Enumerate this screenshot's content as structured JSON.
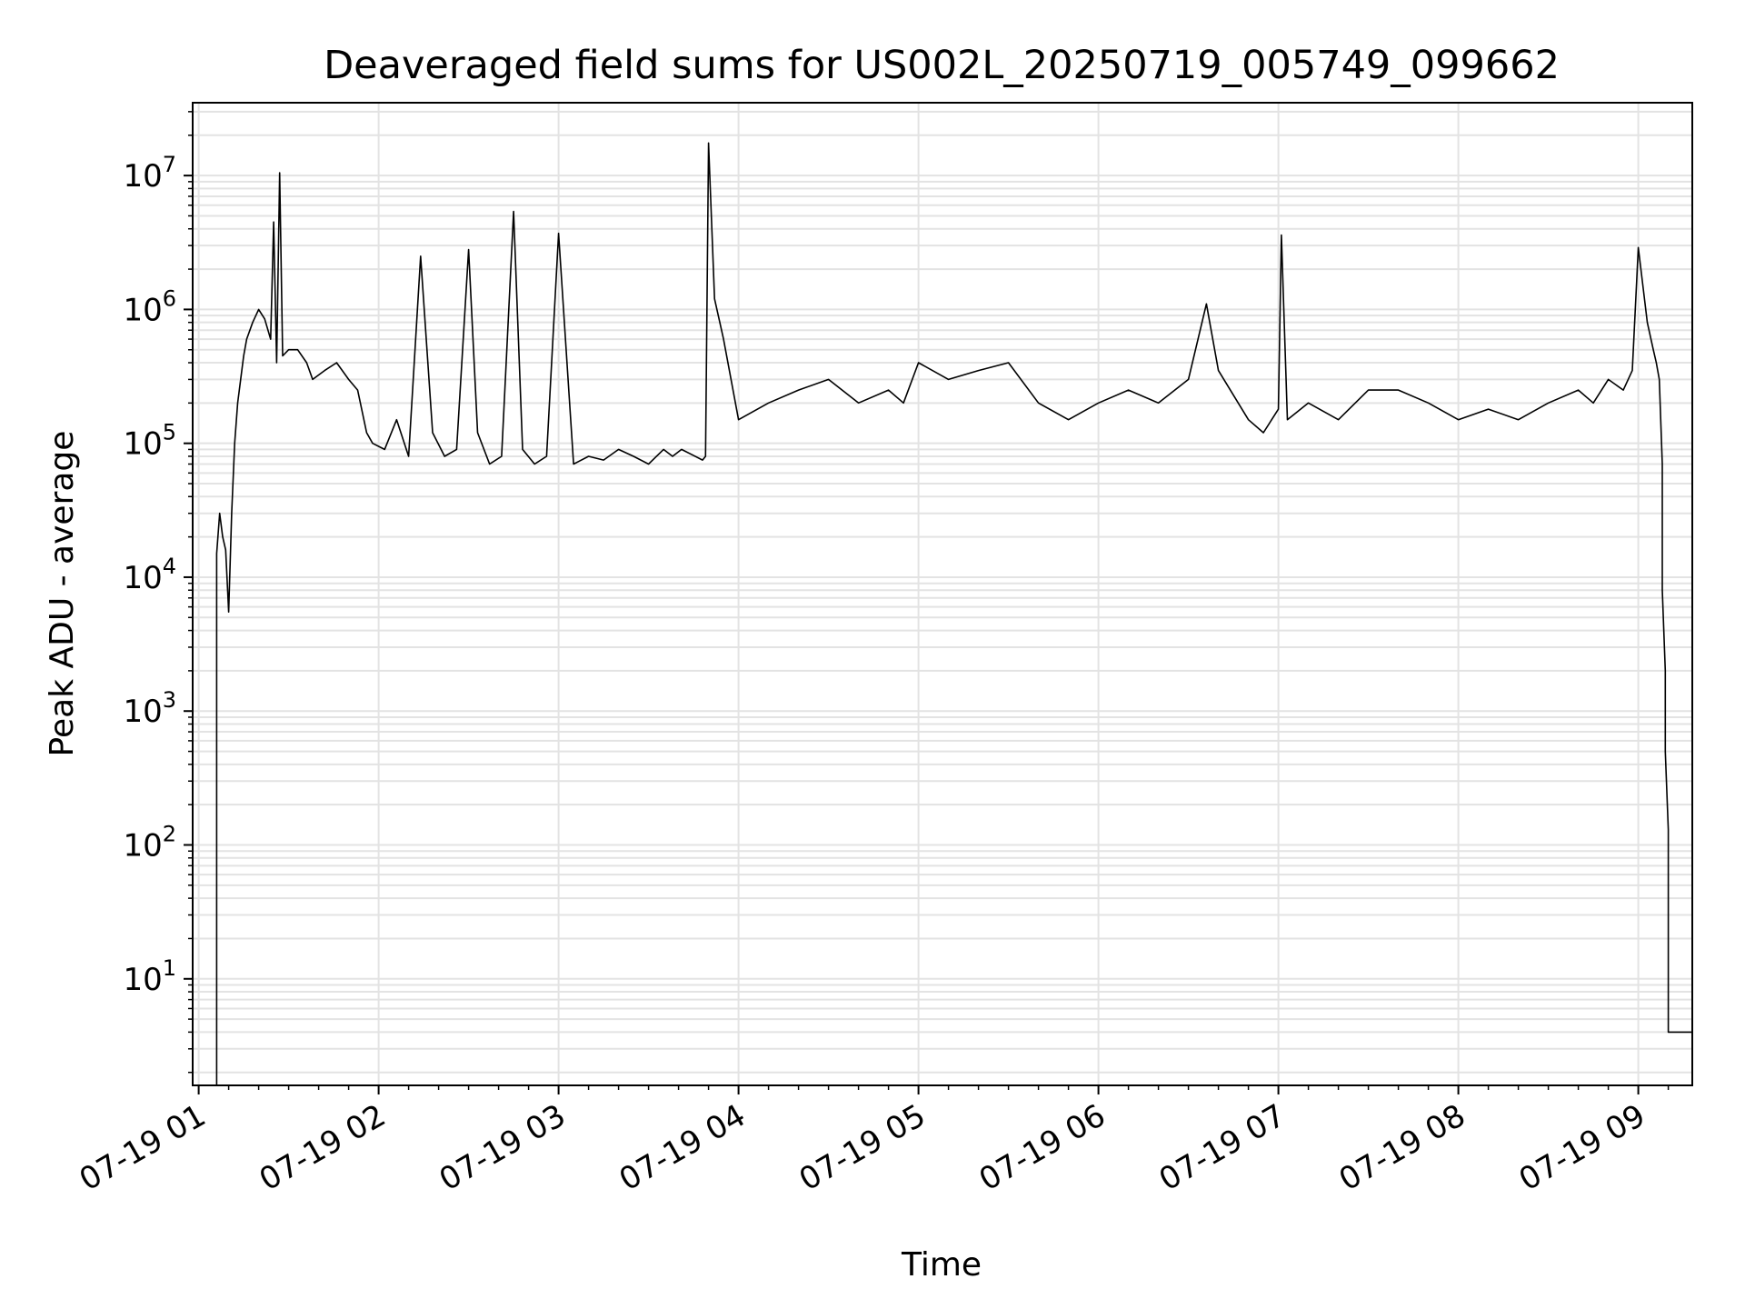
{
  "chart_data": {
    "type": "line",
    "title": "Deaveraged field sums for US002L_20250719_005749_099662",
    "xlabel": "Time",
    "ylabel": "Peak ADU - average",
    "yscale": "log",
    "ylim": [
      1.6,
      35000000
    ],
    "xlim": [
      "07-19 00:58",
      "07-19 09:18"
    ],
    "grid": true,
    "line_color": "#000000",
    "x_tick_labels": [
      "07-19 01",
      "07-19 02",
      "07-19 03",
      "07-19 04",
      "07-19 05",
      "07-19 06",
      "07-19 07",
      "07-19 08",
      "07-19 09"
    ],
    "y_tick_labels": [
      {
        "base": "10",
        "exp": "1"
      },
      {
        "base": "10",
        "exp": "2"
      },
      {
        "base": "10",
        "exp": "3"
      },
      {
        "base": "10",
        "exp": "4"
      },
      {
        "base": "10",
        "exp": "5"
      },
      {
        "base": "10",
        "exp": "6"
      },
      {
        "base": "10",
        "exp": "7"
      }
    ],
    "series": [
      {
        "x": [
          "07-19 01:06",
          "07-19 01:06",
          "07-19 01:07",
          "07-19 01:08",
          "07-19 01:09",
          "07-19 01:10",
          "07-19 01:11",
          "07-19 01:12",
          "07-19 01:13",
          "07-19 01:14",
          "07-19 01:15",
          "07-19 01:16",
          "07-19 01:18",
          "07-19 01:20",
          "07-19 01:22",
          "07-19 01:24",
          "07-19 01:25",
          "07-19 01:26",
          "07-19 01:27",
          "07-19 01:28",
          "07-19 01:30",
          "07-19 01:33",
          "07-19 01:36",
          "07-19 01:38",
          "07-19 01:42",
          "07-19 01:46",
          "07-19 01:50",
          "07-19 01:53",
          "07-19 01:56",
          "07-19 01:58",
          "07-19 02:02",
          "07-19 02:06",
          "07-19 02:10",
          "07-19 02:14",
          "07-19 02:18",
          "07-19 02:22",
          "07-19 02:26",
          "07-19 02:30",
          "07-19 02:33",
          "07-19 02:37",
          "07-19 02:41",
          "07-19 02:45",
          "07-19 02:48",
          "07-19 02:52",
          "07-19 02:56",
          "07-19 03:00",
          "07-19 03:05",
          "07-19 03:10",
          "07-19 03:15",
          "07-19 03:20",
          "07-19 03:25",
          "07-19 03:30",
          "07-19 03:35",
          "07-19 03:38",
          "07-19 03:41",
          "07-19 03:48",
          "07-19 03:49",
          "07-19 03:50",
          "07-19 03:52",
          "07-19 03:55",
          "07-19 04:00",
          "07-19 04:10",
          "07-19 04:20",
          "07-19 04:30",
          "07-19 04:40",
          "07-19 04:50",
          "07-19 04:55",
          "07-19 05:00",
          "07-19 05:10",
          "07-19 05:20",
          "07-19 05:30",
          "07-19 05:40",
          "07-19 05:50",
          "07-19 06:00",
          "07-19 06:10",
          "07-19 06:20",
          "07-19 06:30",
          "07-19 06:36",
          "07-19 06:40",
          "07-19 06:50",
          "07-19 06:55",
          "07-19 07:00",
          "07-19 07:01",
          "07-19 07:03",
          "07-19 07:10",
          "07-19 07:20",
          "07-19 07:30",
          "07-19 07:40",
          "07-19 07:50",
          "07-19 08:00",
          "07-19 08:10",
          "07-19 08:20",
          "07-19 08:30",
          "07-19 08:40",
          "07-19 08:45",
          "07-19 08:50",
          "07-19 08:55",
          "07-19 08:58",
          "07-19 09:00",
          "07-19 09:03",
          "07-19 09:05",
          "07-19 09:06",
          "07-19 09:07",
          "07-19 09:08",
          "07-19 09:08",
          "07-19 09:09",
          "07-19 09:09",
          "07-19 09:10",
          "07-19 09:10",
          "07-19 09:10",
          "07-19 09:12",
          "07-19 09:15",
          "07-19 09:18"
        ],
        "y": [
          1.6,
          15000,
          30000,
          20000,
          16000,
          5500,
          30000,
          100000,
          200000,
          300000,
          450000,
          600000,
          800000,
          1000000,
          850000,
          600000,
          4500000,
          400000,
          10500000,
          450000,
          500000,
          500000,
          400000,
          300000,
          350000,
          400000,
          300000,
          250000,
          120000,
          100000,
          90000,
          150000,
          80000,
          2500000,
          120000,
          80000,
          90000,
          2800000,
          120000,
          70000,
          80000,
          5400000,
          90000,
          70000,
          80000,
          3700000,
          70000,
          80000,
          75000,
          90000,
          80000,
          70000,
          90000,
          80000,
          90000,
          75000,
          80000,
          17500000,
          1200000,
          600000,
          150000,
          200000,
          250000,
          300000,
          200000,
          250000,
          200000,
          400000,
          300000,
          350000,
          400000,
          200000,
          150000,
          200000,
          250000,
          200000,
          300000,
          1100000,
          350000,
          150000,
          120000,
          180000,
          3600000,
          150000,
          200000,
          150000,
          250000,
          250000,
          200000,
          150000,
          180000,
          150000,
          200000,
          250000,
          200000,
          300000,
          250000,
          350000,
          2900000,
          800000,
          500000,
          400000,
          300000,
          70000,
          8000,
          2000,
          500,
          130,
          80,
          4,
          4,
          4,
          4
        ]
      }
    ]
  }
}
